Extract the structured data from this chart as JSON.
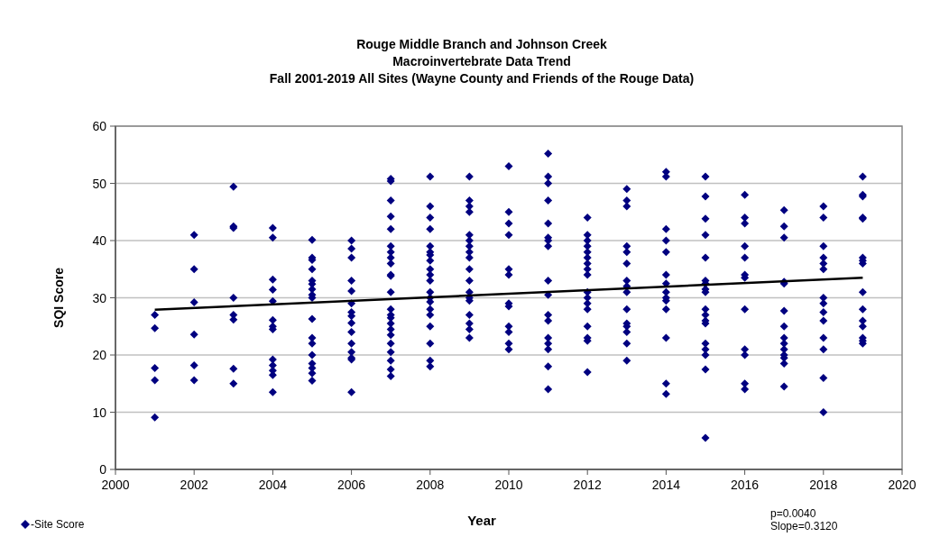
{
  "chart_data": {
    "type": "scatter",
    "title": "Rouge Middle Branch and Johnson Creek\nMacroinvertebrate Data Trend\nFall 2001-2019 All Sites (Wayne County and Friends of the Rouge Data)",
    "xlabel": "Year",
    "ylabel": "SQI Score",
    "xlim": [
      2000,
      2020
    ],
    "xticks": [
      2000,
      2002,
      2004,
      2006,
      2008,
      2010,
      2012,
      2014,
      2016,
      2018,
      2020
    ],
    "ylim": [
      0,
      60
    ],
    "yticks": [
      0,
      10,
      20,
      30,
      40,
      50,
      60
    ],
    "grid": "y",
    "legend": "bottom left",
    "marker": "diamond",
    "annotations": [
      "p=0.0040",
      "Slope=0.3120"
    ],
    "series": [
      {
        "name": "-Site Score",
        "color": "#000080",
        "x": [
          2001,
          2001,
          2001,
          2001,
          2001,
          2002,
          2002,
          2002,
          2002,
          2002,
          2002,
          2003,
          2003,
          2003,
          2003,
          2003,
          2003,
          2003,
          2003,
          2004,
          2004,
          2004,
          2004,
          2004,
          2004,
          2004,
          2004,
          2004,
          2004,
          2004,
          2004,
          2004,
          2005,
          2005,
          2005,
          2005,
          2005,
          2005,
          2005,
          2005,
          2005,
          2005,
          2005,
          2005,
          2005,
          2005,
          2005,
          2005,
          2005,
          2006,
          2006,
          2006,
          2006,
          2006,
          2006,
          2006,
          2006,
          2006,
          2006,
          2006,
          2006,
          2006,
          2006,
          2006,
          2007,
          2007,
          2007,
          2007,
          2007,
          2007,
          2007,
          2007,
          2007,
          2007,
          2007,
          2007,
          2007,
          2007,
          2007,
          2007,
          2007,
          2007,
          2007,
          2007,
          2007,
          2007,
          2007,
          2008,
          2008,
          2008,
          2008,
          2008,
          2008,
          2008,
          2008,
          2008,
          2008,
          2008,
          2008,
          2008,
          2008,
          2008,
          2008,
          2008,
          2008,
          2008,
          2008,
          2009,
          2009,
          2009,
          2009,
          2009,
          2009,
          2009,
          2009,
          2009,
          2009,
          2009,
          2009,
          2009,
          2009,
          2009,
          2009,
          2009,
          2009,
          2010,
          2010,
          2010,
          2010,
          2010,
          2010,
          2010,
          2010,
          2010,
          2010,
          2010,
          2010,
          2011,
          2011,
          2011,
          2011,
          2011,
          2011,
          2011,
          2011,
          2011,
          2011,
          2011,
          2011,
          2011,
          2011,
          2011,
          2011,
          2011,
          2012,
          2012,
          2012,
          2012,
          2012,
          2012,
          2012,
          2012,
          2012,
          2012,
          2012,
          2012,
          2012,
          2012,
          2012,
          2012,
          2012,
          2013,
          2013,
          2013,
          2013,
          2013,
          2013,
          2013,
          2013,
          2013,
          2013,
          2013,
          2013,
          2013,
          2013,
          2013,
          2014,
          2014,
          2014,
          2014,
          2014,
          2014,
          2014,
          2014,
          2014,
          2014,
          2014,
          2014,
          2014,
          2014,
          2015,
          2015,
          2015,
          2015,
          2015,
          2015,
          2015,
          2015,
          2015,
          2015,
          2015,
          2015,
          2015,
          2015,
          2015,
          2015,
          2015,
          2015,
          2016,
          2016,
          2016,
          2016,
          2016,
          2016,
          2016,
          2016,
          2016,
          2016,
          2016,
          2016,
          2017,
          2017,
          2017,
          2017,
          2017,
          2017,
          2017,
          2017,
          2017,
          2017,
          2017,
          2017,
          2017,
          2017,
          2018,
          2018,
          2018,
          2018,
          2018,
          2018,
          2018,
          2018,
          2018,
          2018,
          2018,
          2018,
          2018,
          2018,
          2019,
          2019,
          2019,
          2019,
          2019,
          2019,
          2019,
          2019,
          2019,
          2019,
          2019,
          2019,
          2019,
          2019,
          2019
        ],
        "values": [
          27,
          24.7,
          17.7,
          15.6,
          9.1,
          41,
          35,
          29.2,
          23.6,
          18.2,
          15.6,
          49.4,
          42.5,
          42.2,
          30,
          27,
          26.2,
          17.6,
          15,
          42.2,
          40.5,
          33.2,
          31.4,
          29.4,
          26.1,
          25,
          24.5,
          19.2,
          18.2,
          17.3,
          16.5,
          13.5,
          40.1,
          37,
          36.6,
          35,
          33,
          32.4,
          31.5,
          30.5,
          30,
          26.3,
          23,
          22,
          20,
          18.5,
          17.7,
          16.8,
          15.5,
          40,
          38.6,
          37,
          33,
          31.2,
          29,
          27.5,
          26.8,
          25.6,
          24,
          22,
          20.5,
          19.5,
          19.2,
          13.5,
          50.8,
          50.4,
          47,
          44.2,
          42,
          39,
          38,
          37,
          36,
          34,
          33.8,
          31,
          28,
          27,
          26.5,
          25.5,
          24.5,
          23.5,
          22,
          20.5,
          19,
          17.5,
          16.3,
          51.2,
          46,
          44,
          42,
          39,
          38,
          37.5,
          36.5,
          35,
          34,
          33,
          31,
          30,
          29.3,
          28,
          27,
          25,
          22,
          19,
          18,
          51.2,
          47,
          46,
          45,
          41,
          40,
          39,
          38,
          37,
          35,
          33,
          31,
          30,
          29.5,
          27,
          25.5,
          24.5,
          23,
          53,
          45,
          43,
          41,
          35,
          34,
          29,
          28.5,
          25,
          24,
          22,
          21,
          55.2,
          51.2,
          50,
          47,
          43,
          40.5,
          40,
          39,
          33,
          30.5,
          27,
          26,
          23,
          22,
          21,
          18,
          14,
          44,
          41,
          40,
          39,
          38,
          37,
          36,
          35,
          34,
          31,
          30,
          29,
          28,
          25,
          23,
          22.5,
          17,
          49,
          47,
          46,
          39,
          38,
          36,
          33,
          32,
          31,
          28,
          25.5,
          25,
          24,
          22,
          19,
          52,
          51.2,
          42,
          40,
          38,
          34,
          32.5,
          31,
          30,
          29.5,
          28,
          23,
          15,
          13.2,
          51.2,
          47.7,
          43.8,
          41,
          37,
          33,
          32.5,
          31.5,
          31,
          28,
          27,
          26,
          25.5,
          22,
          21,
          20,
          17.5,
          5.5,
          48,
          44,
          43,
          39,
          37,
          34,
          33.5,
          28,
          21,
          20,
          15,
          14,
          45.3,
          42.5,
          40.5,
          32.8,
          32.5,
          27.7,
          25,
          23,
          22,
          21,
          20,
          19.5,
          18.5,
          14.5,
          46,
          44,
          39,
          37,
          36,
          35,
          30,
          29,
          27.5,
          26,
          23,
          21,
          16,
          10,
          51.2,
          48,
          47.7,
          44,
          43.8,
          37,
          36.5,
          36,
          31,
          28,
          26,
          25,
          23,
          22.5,
          22
        ]
      },
      {
        "type": "line",
        "marker": "none",
        "color": "#000000",
        "x": [
          2001,
          2019
        ],
        "values": [
          27.9,
          33.5
        ]
      }
    ]
  }
}
